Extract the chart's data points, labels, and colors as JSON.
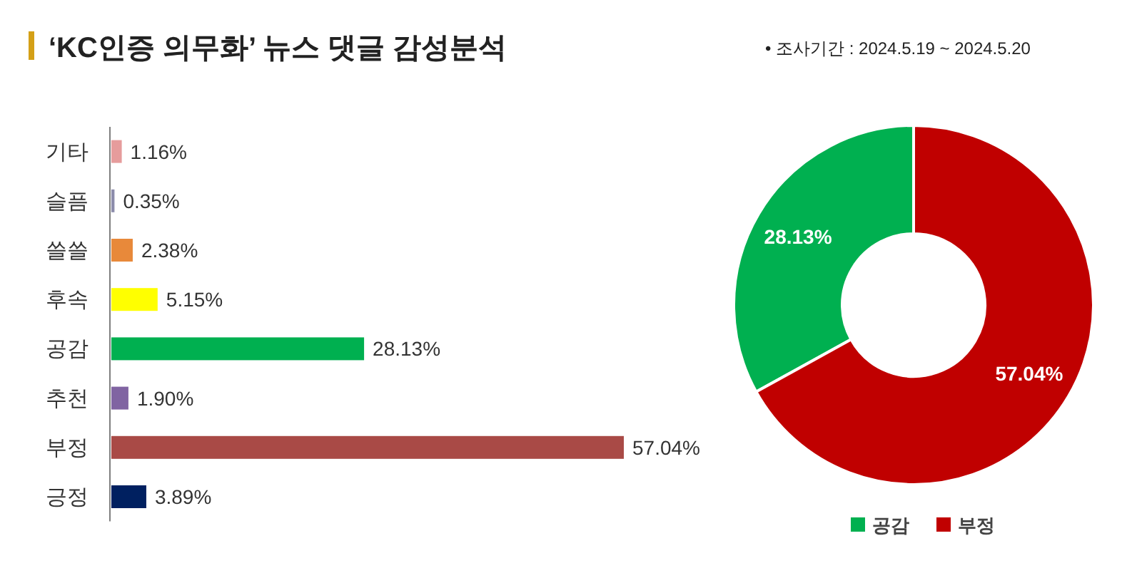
{
  "chart_data": [
    {
      "type": "bar",
      "orientation": "horizontal",
      "title": "‘KC인증 의무화’ 뉴스 댓글 감성분석",
      "annotations": [
        "• 조사기간 : 2024.5.19 ~ 2024.5.20"
      ],
      "categories": [
        "기타",
        "슬픔",
        "쓸쓸",
        "후속",
        "공감",
        "추천",
        "부정",
        "긍정"
      ],
      "values": [
        1.16,
        0.35,
        2.38,
        5.15,
        28.13,
        1.9,
        57.04,
        3.89
      ],
      "colors": [
        "#e69c9c",
        "#8c8cab",
        "#e8893a",
        "#ffff00",
        "#00b050",
        "#8064a2",
        "#a94a46",
        "#002060"
      ],
      "value_labels": [
        "1.16%",
        "0.35%",
        "2.38%",
        "5.15%",
        "28.13%",
        "1.90%",
        "57.04%",
        "3.89%"
      ]
    },
    {
      "type": "donut",
      "categories": [
        "공감",
        "부정"
      ],
      "values": [
        28.13,
        57.04
      ],
      "colors": [
        "#00b050",
        "#c00000"
      ],
      "value_labels": [
        "28.13%",
        "57.04%"
      ],
      "legend": "bottom"
    }
  ]
}
